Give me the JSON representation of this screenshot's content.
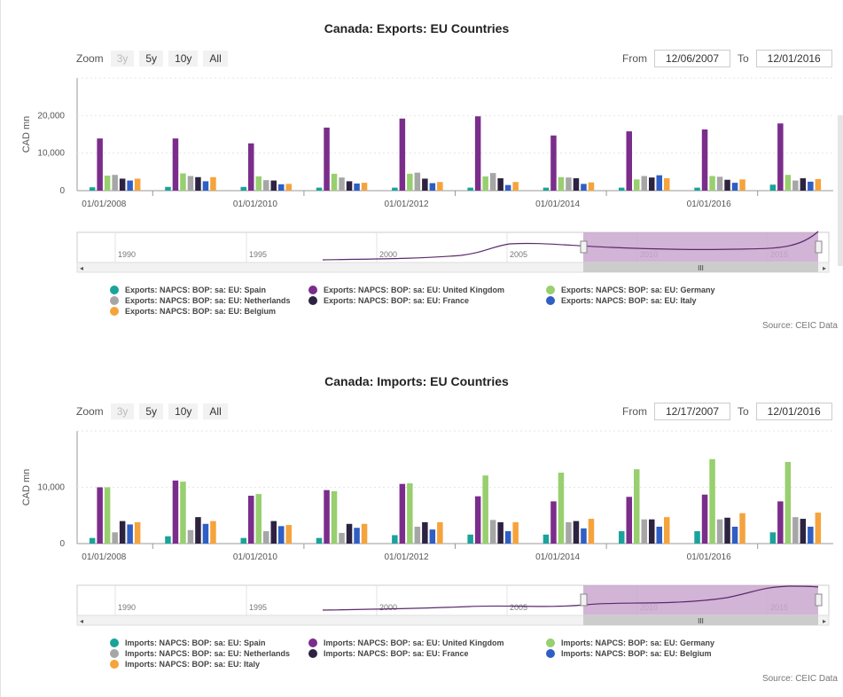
{
  "source_label": "Source: CEIC Data",
  "zoom": {
    "label": "Zoom",
    "buttons": [
      "3y",
      "5y",
      "10y",
      "All"
    ]
  },
  "charts": [
    {
      "id": "exports",
      "from_label": "From",
      "to_label": "To",
      "from_value": "12/06/2007",
      "to_value": "12/01/2016",
      "navigator_years": [
        "1990",
        "1995",
        "2000",
        "2005",
        "2010",
        "2015"
      ],
      "scroll_grip": "III"
    },
    {
      "id": "imports",
      "from_label": "From",
      "to_label": "To",
      "from_value": "12/17/2007",
      "to_value": "12/01/2016",
      "navigator_years": [
        "1990",
        "1995",
        "2000",
        "2005",
        "2010",
        "2015"
      ],
      "scroll_grip": "III"
    }
  ],
  "chart_data": [
    {
      "type": "bar",
      "title": "Canada: Exports: EU Countries",
      "ylabel": "CAD mn",
      "ylim": [
        0,
        30000
      ],
      "yticks": [
        0,
        10000,
        20000
      ],
      "ytick_labels": [
        "0",
        "10,000",
        "20,000"
      ],
      "categories": [
        "2007",
        "2008",
        "2009",
        "2010",
        "2011",
        "2012",
        "2013",
        "2014",
        "2015",
        "2016"
      ],
      "x_tick_labels": [
        {
          "label": "01/01/2008",
          "after_index": 0
        },
        {
          "label": "01/01/2010",
          "after_index": 2
        },
        {
          "label": "01/01/2012",
          "after_index": 4
        },
        {
          "label": "01/01/2014",
          "after_index": 6
        },
        {
          "label": "01/01/2016",
          "after_index": 8
        }
      ],
      "series": [
        {
          "name": "Exports: NAPCS: BOP: sa: EU: Spain",
          "color": "#1aa39a",
          "values": [
            900,
            1000,
            1000,
            800,
            800,
            800,
            800,
            800,
            800,
            1600
          ]
        },
        {
          "name": "Exports: NAPCS: BOP: sa: EU: United Kingdom",
          "color": "#7b2d8b",
          "values": [
            13900,
            13900,
            12600,
            16800,
            19200,
            19800,
            14700,
            15800,
            16300,
            17900
          ]
        },
        {
          "name": "Exports: NAPCS: BOP: sa: EU: Germany",
          "color": "#98cf6f",
          "values": [
            4000,
            4600,
            3800,
            4500,
            4500,
            3800,
            3600,
            3000,
            3900,
            4200
          ]
        },
        {
          "name": "Exports: NAPCS: BOP: sa: EU: Netherlands",
          "color": "#a6a6a6",
          "values": [
            4200,
            3900,
            2800,
            3500,
            4800,
            4700,
            3500,
            3900,
            3700,
            2700
          ]
        },
        {
          "name": "Exports: NAPCS: BOP: sa: EU: France",
          "color": "#2d2340",
          "values": [
            3200,
            3600,
            2700,
            2500,
            3200,
            3300,
            3300,
            3500,
            2900,
            3300
          ]
        },
        {
          "name": "Exports: NAPCS: BOP: sa: EU: Italy",
          "color": "#2f5ec4",
          "values": [
            2700,
            2500,
            1700,
            1900,
            2000,
            1500,
            1800,
            4100,
            2100,
            2400
          ]
        },
        {
          "name": "Exports: NAPCS: BOP: sa: EU: Belgium",
          "color": "#f5a33c",
          "values": [
            3200,
            3600,
            1800,
            2100,
            2300,
            2300,
            2200,
            3300,
            3000,
            3100
          ]
        }
      ],
      "legend_order": [
        0,
        1,
        2,
        3,
        4,
        5,
        6
      ]
    },
    {
      "type": "bar",
      "title": "Canada: Imports: EU Countries",
      "ylabel": "CAD mn",
      "ylim": [
        0,
        20000
      ],
      "yticks": [
        0,
        10000
      ],
      "ytick_labels": [
        "0",
        "10,000"
      ],
      "categories": [
        "2007",
        "2008",
        "2009",
        "2010",
        "2011",
        "2012",
        "2013",
        "2014",
        "2015",
        "2016"
      ],
      "x_tick_labels": [
        {
          "label": "01/01/2008",
          "after_index": 0
        },
        {
          "label": "01/01/2010",
          "after_index": 2
        },
        {
          "label": "01/01/2012",
          "after_index": 4
        },
        {
          "label": "01/01/2014",
          "after_index": 6
        },
        {
          "label": "01/01/2016",
          "after_index": 8
        }
      ],
      "series": [
        {
          "name": "Imports: NAPCS: BOP: sa: EU: Spain",
          "color": "#1aa39a",
          "values": [
            1000,
            1300,
            1000,
            1000,
            1500,
            1600,
            1600,
            2200,
            2200,
            2000
          ]
        },
        {
          "name": "Imports: NAPCS: BOP: sa: EU: United Kingdom",
          "color": "#7b2d8b",
          "values": [
            10000,
            11200,
            8500,
            9500,
            10600,
            8400,
            7500,
            8300,
            8700,
            7500
          ]
        },
        {
          "name": "Imports: NAPCS: BOP: sa: EU: Germany",
          "color": "#98cf6f",
          "values": [
            10000,
            11000,
            8800,
            9300,
            10700,
            12100,
            12600,
            13200,
            15000,
            14500
          ]
        },
        {
          "name": "Imports: NAPCS: BOP: sa: EU: Netherlands",
          "color": "#a6a6a6",
          "values": [
            2000,
            2400,
            2200,
            1900,
            3000,
            4200,
            3800,
            4300,
            4300,
            4700
          ]
        },
        {
          "name": "Imports: NAPCS: BOP: sa: EU: France",
          "color": "#2d2340",
          "values": [
            4000,
            4700,
            4000,
            3500,
            3800,
            3800,
            4000,
            4300,
            4600,
            4400
          ]
        },
        {
          "name": "Imports: NAPCS: BOP: sa: EU: Belgium",
          "color": "#2f5ec4",
          "values": [
            3400,
            3500,
            3100,
            2800,
            2500,
            2200,
            2700,
            3000,
            3000,
            3000
          ]
        },
        {
          "name": "Imports: NAPCS: BOP: sa: EU: Italy",
          "color": "#f5a33c",
          "values": [
            3800,
            4000,
            3300,
            3500,
            3800,
            3800,
            4400,
            4700,
            5400,
            5500
          ]
        }
      ],
      "legend_order": [
        0,
        1,
        2,
        3,
        4,
        5,
        6
      ]
    }
  ]
}
